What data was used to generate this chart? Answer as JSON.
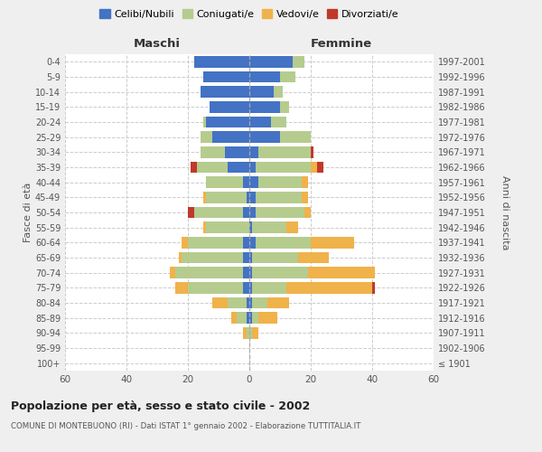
{
  "age_groups": [
    "100+",
    "95-99",
    "90-94",
    "85-89",
    "80-84",
    "75-79",
    "70-74",
    "65-69",
    "60-64",
    "55-59",
    "50-54",
    "45-49",
    "40-44",
    "35-39",
    "30-34",
    "25-29",
    "20-24",
    "15-19",
    "10-14",
    "5-9",
    "0-4"
  ],
  "birth_years": [
    "≤ 1901",
    "1902-1906",
    "1907-1911",
    "1912-1916",
    "1917-1921",
    "1922-1926",
    "1927-1931",
    "1932-1936",
    "1937-1941",
    "1942-1946",
    "1947-1951",
    "1952-1956",
    "1957-1961",
    "1962-1966",
    "1967-1971",
    "1972-1976",
    "1977-1981",
    "1982-1986",
    "1987-1991",
    "1992-1996",
    "1997-2001"
  ],
  "maschi": {
    "celibi": [
      0,
      0,
      0,
      1,
      1,
      2,
      2,
      2,
      2,
      0,
      2,
      1,
      2,
      7,
      8,
      12,
      14,
      13,
      16,
      15,
      18
    ],
    "coniugati": [
      0,
      0,
      1,
      3,
      6,
      18,
      22,
      20,
      18,
      14,
      16,
      13,
      12,
      10,
      8,
      4,
      1,
      0,
      0,
      0,
      0
    ],
    "vedovi": [
      0,
      0,
      1,
      2,
      5,
      4,
      2,
      1,
      2,
      1,
      0,
      1,
      0,
      0,
      0,
      0,
      0,
      0,
      0,
      0,
      0
    ],
    "divorziati": [
      0,
      0,
      0,
      0,
      0,
      0,
      0,
      0,
      0,
      0,
      2,
      0,
      0,
      2,
      0,
      0,
      0,
      0,
      0,
      0,
      0
    ]
  },
  "femmine": {
    "nubili": [
      0,
      0,
      0,
      1,
      1,
      1,
      1,
      1,
      2,
      1,
      2,
      2,
      3,
      2,
      3,
      10,
      7,
      10,
      8,
      10,
      14
    ],
    "coniugate": [
      0,
      0,
      1,
      2,
      5,
      11,
      18,
      15,
      18,
      11,
      16,
      15,
      14,
      18,
      17,
      10,
      5,
      3,
      3,
      5,
      4
    ],
    "vedove": [
      0,
      0,
      2,
      6,
      7,
      28,
      22,
      10,
      14,
      4,
      2,
      2,
      2,
      2,
      0,
      0,
      0,
      0,
      0,
      0,
      0
    ],
    "divorziate": [
      0,
      0,
      0,
      0,
      0,
      1,
      0,
      0,
      0,
      0,
      0,
      0,
      0,
      2,
      1,
      0,
      0,
      0,
      0,
      0,
      0
    ]
  },
  "colors": {
    "celibi_nubili": "#4472C4",
    "coniugati": "#b5cc8e",
    "vedovi": "#f0b24a",
    "divorziati": "#c0392b"
  },
  "xlim": 60,
  "title": "Popolazione per età, sesso e stato civile - 2002",
  "subtitle": "COMUNE DI MONTEBUONO (RI) - Dati ISTAT 1° gennaio 2002 - Elaborazione TUTTITALIA.IT",
  "ylabel_left": "Fasce di età",
  "ylabel_right": "Anni di nascita",
  "xlabel_left": "Maschi",
  "xlabel_right": "Femmine",
  "bg_color": "#efefef",
  "plot_bg_color": "#ffffff"
}
